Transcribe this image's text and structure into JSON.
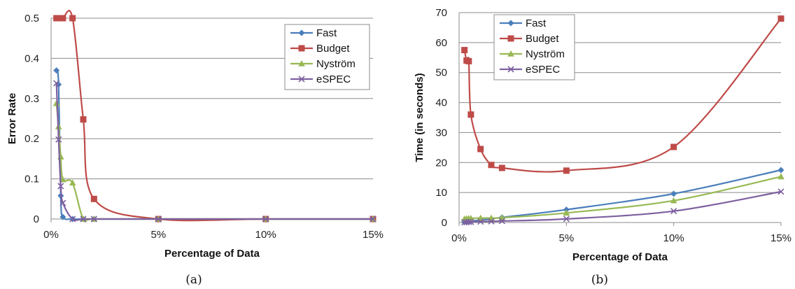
{
  "chart_data": [
    {
      "type": "line",
      "caption": "(a)",
      "xlabel": "Percentage of Data",
      "ylabel": "Error Rate",
      "x_ticks": [
        "0%",
        "5%",
        "10%",
        "15%"
      ],
      "x_tick_values": [
        0,
        5,
        10,
        15
      ],
      "y_ticks": [
        "0",
        "0.1",
        "0.2",
        "0.3",
        "0.4",
        "0.5"
      ],
      "y_tick_values": [
        0,
        0.1,
        0.2,
        0.3,
        0.4,
        0.5
      ],
      "xlim": [
        0,
        15
      ],
      "ylim": [
        0,
        0.5
      ],
      "grid": "horizontal",
      "legend_position": "top-right",
      "series": [
        {
          "name": "Fast",
          "color": "#4a7ebb",
          "marker": "diamond",
          "x": [
            0.25,
            0.35,
            0.45,
            0.55,
            1,
            1.5,
            2,
            5,
            10,
            15
          ],
          "y": [
            0.37,
            0.335,
            0.058,
            0.005,
            0,
            0,
            0,
            0,
            0,
            0
          ]
        },
        {
          "name": "Budget",
          "color": "#be4b48",
          "marker": "square",
          "x": [
            0.25,
            0.35,
            0.45,
            0.55,
            1,
            1.5,
            2,
            5,
            10,
            15
          ],
          "y": [
            0.5,
            0.5,
            0.5,
            0.5,
            0.5,
            0.248,
            0.05,
            0,
            0,
            0
          ]
        },
        {
          "name": "Nyström",
          "color": "#98b954",
          "marker": "triangle",
          "x": [
            0.25,
            0.35,
            0.45,
            0.55,
            1,
            1.5,
            2,
            5,
            10,
            15
          ],
          "y": [
            0.288,
            0.23,
            0.155,
            0.098,
            0.09,
            0,
            0,
            0,
            0,
            0
          ]
        },
        {
          "name": "eSPEC",
          "color": "#7d60a0",
          "marker": "x",
          "x": [
            0.25,
            0.35,
            0.45,
            0.55,
            1,
            1.5,
            2,
            5,
            10,
            15
          ],
          "y": [
            0.338,
            0.198,
            0.082,
            0.04,
            0,
            0,
            0,
            0,
            0,
            0
          ]
        }
      ]
    },
    {
      "type": "line",
      "caption": "(b)",
      "xlabel": "Percentage of Data",
      "ylabel": "Time (in seconds)",
      "x_ticks": [
        "0%",
        "5%",
        "10%",
        "15%"
      ],
      "x_tick_values": [
        0,
        5,
        10,
        15
      ],
      "y_ticks": [
        "0",
        "10",
        "20",
        "30",
        "40",
        "50",
        "60",
        "70"
      ],
      "y_tick_values": [
        0,
        10,
        20,
        30,
        40,
        50,
        60,
        70
      ],
      "xlim": [
        0,
        15
      ],
      "ylim": [
        0,
        70
      ],
      "grid": "horizontal",
      "legend_position": "top-left",
      "series": [
        {
          "name": "Fast",
          "color": "#4a7ebb",
          "marker": "diamond",
          "x": [
            0.25,
            0.35,
            0.45,
            0.55,
            1,
            1.5,
            2,
            5,
            10,
            15
          ],
          "y": [
            0.2,
            0.3,
            0.4,
            0.5,
            0.8,
            1.2,
            1.7,
            4.3,
            9.6,
            17.5
          ]
        },
        {
          "name": "Budget",
          "color": "#be4b48",
          "marker": "square",
          "x": [
            0.25,
            0.35,
            0.45,
            0.55,
            1,
            1.5,
            2,
            5,
            10,
            15
          ],
          "y": [
            57.5,
            54,
            53.8,
            36,
            24.5,
            19.2,
            18.2,
            17.3,
            25.2,
            68
          ]
        },
        {
          "name": "Nyström",
          "color": "#98b954",
          "marker": "triangle",
          "x": [
            0.25,
            0.35,
            0.45,
            0.55,
            1,
            1.5,
            2,
            5,
            10,
            15
          ],
          "y": [
            1.2,
            1.3,
            1.3,
            1.4,
            1.5,
            1.5,
            1.6,
            3.2,
            7.3,
            15.3
          ]
        },
        {
          "name": "eSPEC",
          "color": "#7d60a0",
          "marker": "x",
          "x": [
            0.25,
            0.35,
            0.45,
            0.55,
            1,
            1.5,
            2,
            5,
            10,
            15
          ],
          "y": [
            0.1,
            0.1,
            0.2,
            0.2,
            0.3,
            0.4,
            0.5,
            1.2,
            3.8,
            10.3
          ]
        }
      ]
    }
  ]
}
